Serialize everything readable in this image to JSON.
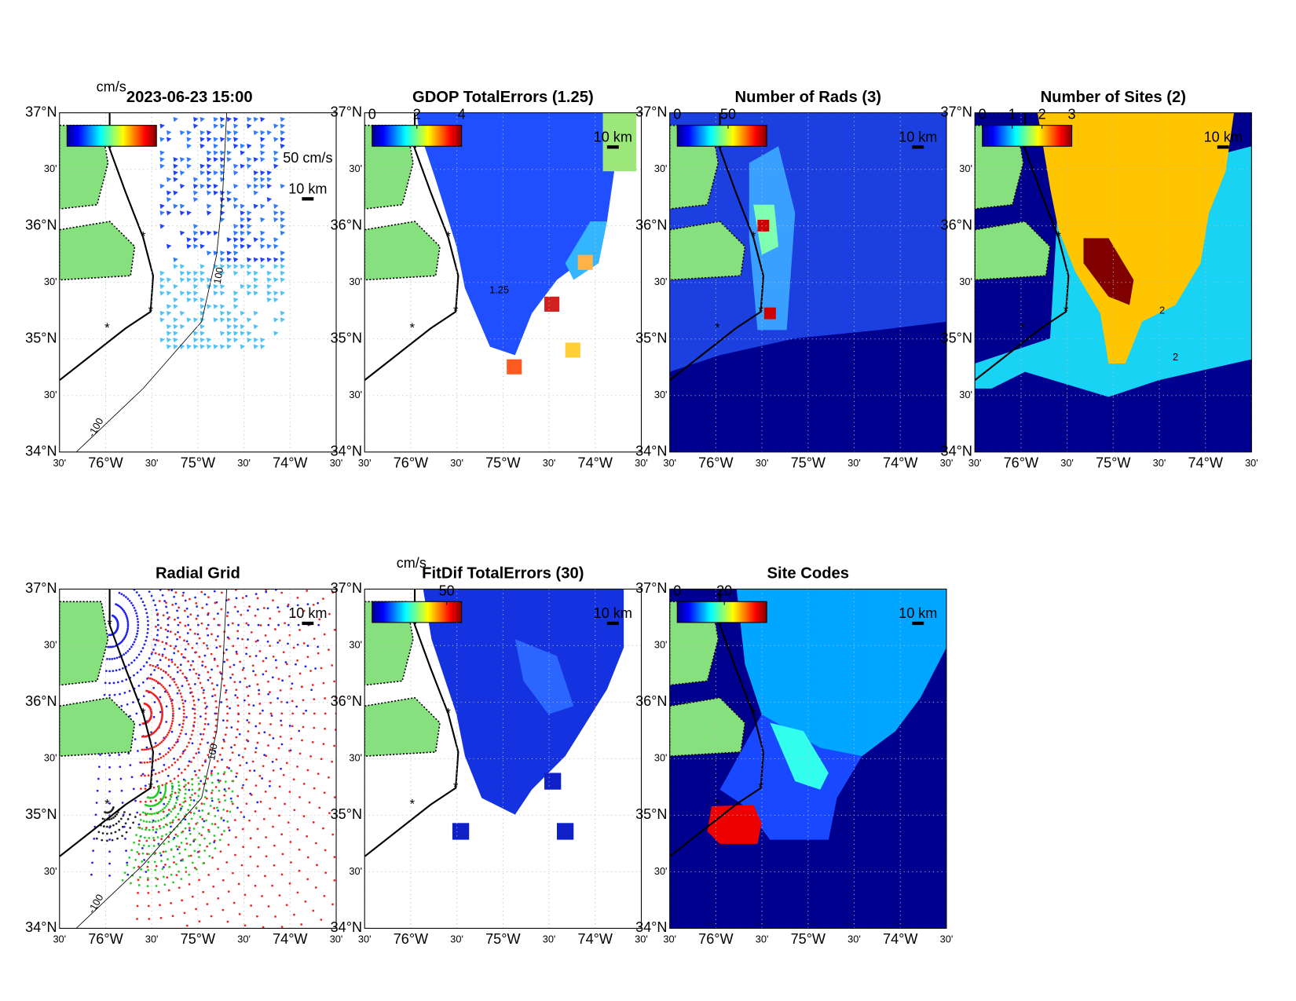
{
  "figure": {
    "lat_ticks": [
      {
        "value": 37,
        "label": "37°N"
      },
      {
        "value": 36.5,
        "label": "30'"
      },
      {
        "value": 36,
        "label": "36°N"
      },
      {
        "value": 35.5,
        "label": "30'"
      },
      {
        "value": 35,
        "label": "35°N"
      },
      {
        "value": 34.5,
        "label": "30'"
      },
      {
        "value": 34,
        "label": "34°N"
      }
    ],
    "lon_ticks": [
      {
        "value": -76.5,
        "label": "30'"
      },
      {
        "value": -76,
        "label": "76°W"
      },
      {
        "value": -75.5,
        "label": "30'"
      },
      {
        "value": -75,
        "label": "75°W"
      },
      {
        "value": -74.5,
        "label": "30'"
      },
      {
        "value": -74,
        "label": "74°W"
      },
      {
        "value": -73.5,
        "label": "30'"
      }
    ],
    "panels": [
      {
        "title": "2023-06-23 15:00",
        "colorbar": {
          "label": "cm/s"
        },
        "scale_label": "10 km",
        "vector_scale_label": "50 cm/s",
        "contour_labels": [
          "100",
          "-100"
        ]
      },
      {
        "title": "GDOP TotalErrors (1.25)",
        "colorbar": {
          "lim": [
            0,
            4
          ],
          "ticks": [
            0,
            2,
            4
          ]
        },
        "scale_label": "10 km",
        "contour_labels": [
          "1.25"
        ]
      },
      {
        "title": "Number of Rads (3)",
        "colorbar": {
          "lim": [
            0,
            88
          ],
          "ticks": [
            0,
            50
          ]
        },
        "scale_label": "10 km"
      },
      {
        "title": "Number of Sites (2)",
        "colorbar": {
          "lim": [
            0,
            3
          ],
          "ticks": [
            0,
            1,
            2,
            3
          ]
        },
        "scale_label": "10 km",
        "contour_labels": [
          "2",
          "2"
        ]
      },
      {
        "title": "Radial Grid",
        "scale_label": "10 km",
        "contour_labels": [
          "100",
          "-100"
        ]
      },
      {
        "title": "FitDif TotalErrors (30)",
        "colorbar": {
          "lim": [
            0,
            60
          ],
          "ticks": [
            50
          ],
          "label": "cm/s"
        },
        "scale_label": "10 km"
      },
      {
        "title": "Site Codes",
        "colorbar": {
          "lim": [
            0,
            38
          ],
          "ticks": [
            0,
            20
          ]
        },
        "scale_label": "10 km"
      }
    ]
  }
}
